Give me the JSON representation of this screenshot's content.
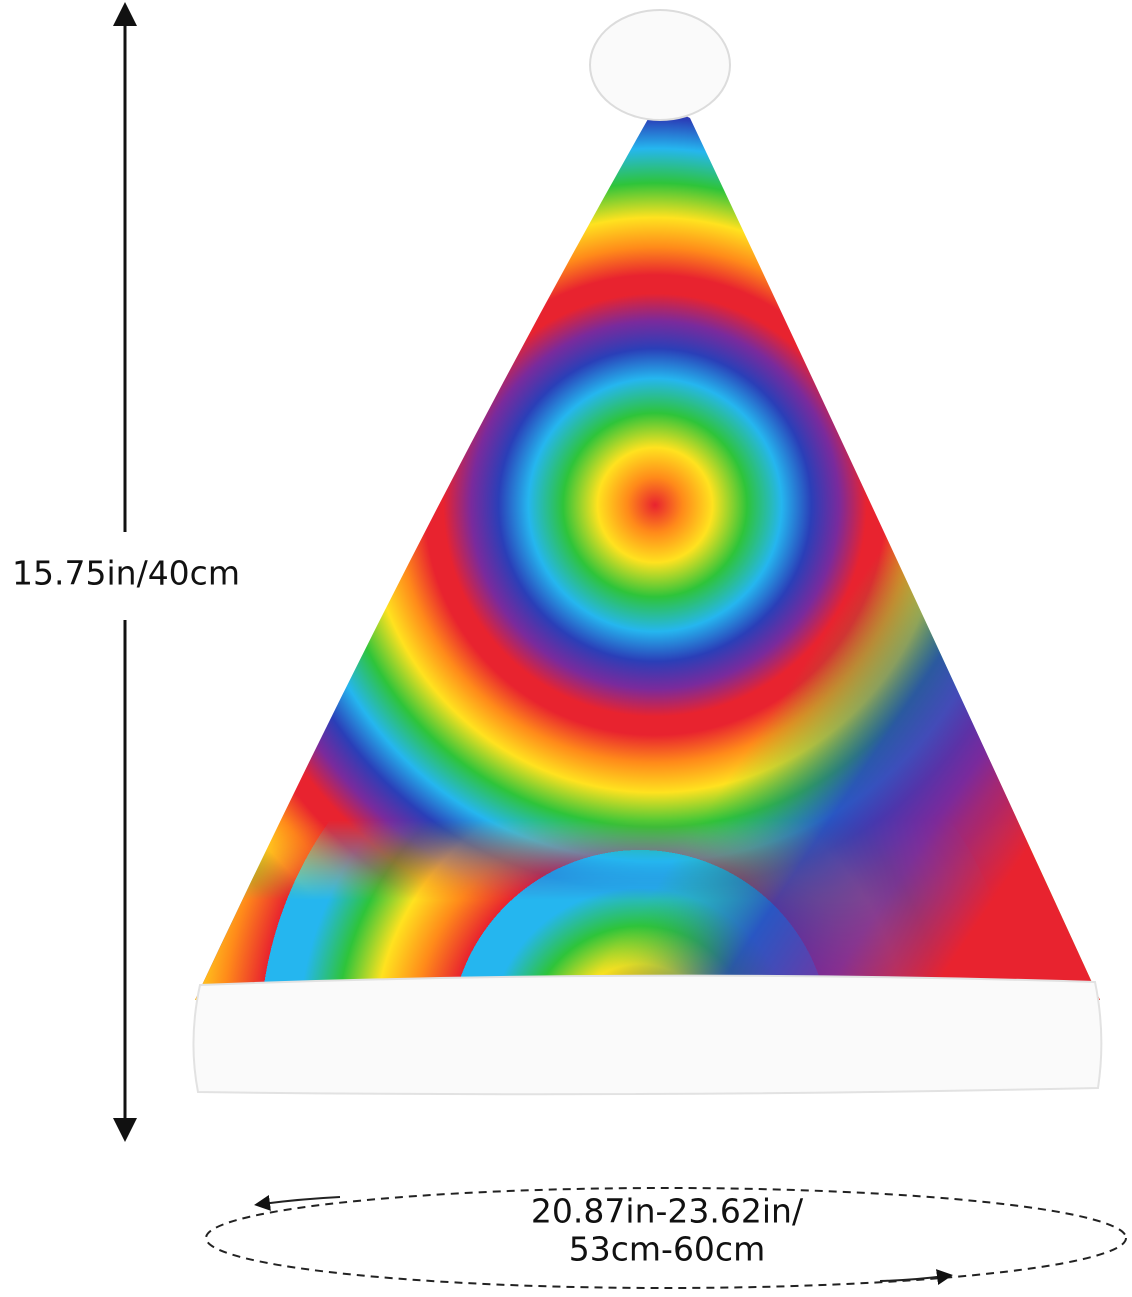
{
  "height_label": "15.75in/40cm",
  "circumference_label": {
    "line_1": "20.87in-23.62in/",
    "line_2": "53cm-60cm"
  }
}
